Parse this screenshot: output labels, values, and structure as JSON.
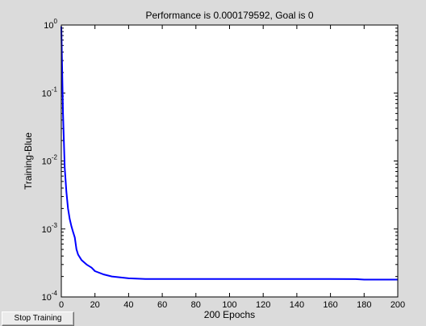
{
  "window": {
    "background": "#dbdbdb"
  },
  "controls": {
    "stop_training_label": "Stop Training"
  },
  "chart_data": {
    "type": "line",
    "title": "Performance is 0.000179592, Goal is 0",
    "xlabel": "200 Epochs",
    "ylabel": "Training-Blue",
    "xlim": [
      0,
      200
    ],
    "ylim": [
      0.0001,
      1
    ],
    "yscale": "log",
    "grid": false,
    "x_ticks": [
      0,
      20,
      40,
      60,
      80,
      100,
      120,
      140,
      160,
      180,
      200
    ],
    "y_ticks": [
      {
        "value": 1,
        "base": "10",
        "exp": "0"
      },
      {
        "value": 0.1,
        "base": "10",
        "exp": "-1"
      },
      {
        "value": 0.01,
        "base": "10",
        "exp": "-2"
      },
      {
        "value": 0.001,
        "base": "10",
        "exp": "-3"
      },
      {
        "value": 0.0001,
        "base": "10",
        "exp": "-4"
      }
    ],
    "series": [
      {
        "color": "#0000ff",
        "x": [
          0,
          1,
          2,
          3,
          4,
          5,
          6,
          7,
          8,
          9,
          10,
          12,
          15,
          18,
          20,
          25,
          30,
          40,
          50,
          60,
          80,
          100,
          120,
          140,
          160,
          175,
          180,
          200
        ],
        "y": [
          0.95,
          0.05,
          0.008,
          0.0035,
          0.002,
          0.0014,
          0.0011,
          0.0009,
          0.00075,
          0.0005,
          0.00042,
          0.00035,
          0.0003,
          0.00027,
          0.00024,
          0.000215,
          0.0002,
          0.000188,
          0.000184,
          0.000184,
          0.000184,
          0.000184,
          0.000184,
          0.000184,
          0.000184,
          0.000183,
          0.00018,
          0.00018
        ]
      }
    ]
  }
}
